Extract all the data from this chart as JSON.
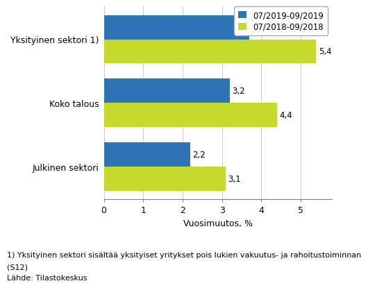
{
  "categories": [
    "Julkinen sektori",
    "Koko talous",
    "Yksityinen sektori 1)"
  ],
  "series": [
    {
      "label": "07/2019-09/2019",
      "values": [
        2.2,
        3.2,
        3.7
      ],
      "color": "#2E75B6"
    },
    {
      "label": "07/2018-09/2018",
      "values": [
        3.1,
        4.4,
        5.4
      ],
      "color": "#C5D92D"
    }
  ],
  "xlabel": "Vuosimuutos, %",
  "xlim": [
    0,
    5.8
  ],
  "xticks": [
    0,
    1,
    2,
    3,
    4,
    5
  ],
  "footnote_line1": "1) Yksityinen sektori sisältää yksityiset yritykset pois lukien vakuutus- ja rahoitustoiminnan",
  "footnote_line2": "(S12)",
  "source": "Lähde: Tilastokeskus",
  "bar_height": 0.38,
  "value_label_fontsize": 8.5,
  "axis_label_fontsize": 9,
  "tick_label_fontsize": 9,
  "legend_fontsize": 8.5,
  "footnote_fontsize": 8,
  "bg_color": "#FFFFFF"
}
